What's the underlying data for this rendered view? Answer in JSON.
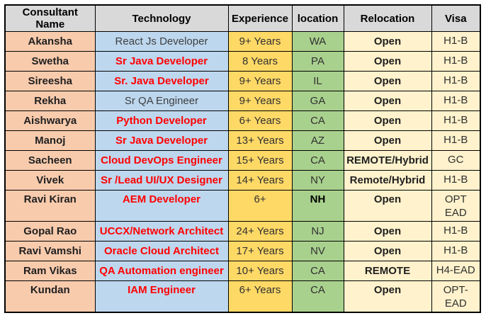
{
  "colors": {
    "header_bg": "#d9d9d9",
    "name_bg": "#f8cbad",
    "tech_bg": "#bdd7ee",
    "exp_bg": "#ffd966",
    "loc_bg": "#a9d18e",
    "reloc_bg": "#fff2cc",
    "visa_bg": "#fff2cc",
    "tech_red": "#ff0000"
  },
  "columns": [
    {
      "label": "Consultant Name"
    },
    {
      "label": "Technology"
    },
    {
      "label": "Experience"
    },
    {
      "label": "location"
    },
    {
      "label": "Relocation"
    },
    {
      "label": "Visa"
    }
  ],
  "rows": [
    {
      "name": "Akansha",
      "technology": "React Js Developer",
      "tech_red": false,
      "experience": "9+ Years",
      "location": "WA",
      "location_bold": false,
      "relocation": "Open",
      "visa": "H1-B",
      "tall": false
    },
    {
      "name": "Swetha",
      "technology": "Sr Java Developer",
      "tech_red": true,
      "experience": "8 Years",
      "location": "PA",
      "location_bold": false,
      "relocation": "Open",
      "visa": "H1-B",
      "tall": false
    },
    {
      "name": "Sireesha",
      "technology": "Sr. Java Developer",
      "tech_red": true,
      "experience": "9+ Years",
      "location": "IL",
      "location_bold": false,
      "relocation": "Open",
      "visa": "H1-B",
      "tall": false
    },
    {
      "name": "Rekha",
      "technology": "Sr QA Engineer",
      "tech_red": false,
      "experience": "9+ Years",
      "location": "GA",
      "location_bold": false,
      "relocation": "Open",
      "visa": "H1-B",
      "tall": false
    },
    {
      "name": "Aishwarya",
      "technology": "Python Developer",
      "tech_red": true,
      "experience": "6+ Years",
      "location": "CA",
      "location_bold": false,
      "relocation": "Open",
      "visa": "H1-B",
      "tall": false
    },
    {
      "name": "Manoj",
      "technology": "Sr Java Developer",
      "tech_red": true,
      "experience": "13+ Years",
      "location": "AZ",
      "location_bold": false,
      "relocation": "Open",
      "visa": "H1-B",
      "tall": false
    },
    {
      "name": "Sacheen",
      "technology": "Cloud DevOps Engineer",
      "tech_red": true,
      "experience": "15+ Years",
      "location": "CA",
      "location_bold": false,
      "relocation": "REMOTE/Hybrid",
      "visa": "GC",
      "tall": false
    },
    {
      "name": "Vivek",
      "technology": "Sr /Lead UI/UX Designer",
      "tech_red": true,
      "experience": "14+ Years",
      "location": "NY",
      "location_bold": false,
      "relocation": "Remote/Hybrid",
      "visa": "H1-B",
      "tall": false
    },
    {
      "name": "Ravi Kiran",
      "technology": "AEM Developer",
      "tech_red": true,
      "experience": "6+",
      "location": "NH",
      "location_bold": true,
      "relocation": "Open",
      "visa": "OPT\nEAD",
      "tall": true
    },
    {
      "name": "Gopal Rao",
      "technology": "UCCX/Network Architect",
      "tech_red": true,
      "experience": "24+ Years",
      "location": "NJ",
      "location_bold": false,
      "relocation": "Open",
      "visa": "H1-B",
      "tall": false
    },
    {
      "name": "Ravi Vamshi",
      "technology": "Oracle Cloud Architect",
      "tech_red": true,
      "experience": "17+ Years",
      "location": "NV",
      "location_bold": false,
      "relocation": "Open",
      "visa": "H1-B",
      "tall": false
    },
    {
      "name": "Ram Vikas",
      "technology": "QA Automation engineer",
      "tech_red": true,
      "experience": "10+ Years",
      "location": "CA",
      "location_bold": false,
      "relocation": "REMOTE",
      "visa": "H4-EAD",
      "tall": false
    },
    {
      "name": "Kundan",
      "technology": "IAM Engineer",
      "tech_red": true,
      "experience": "6+ Years",
      "location": "CA",
      "location_bold": false,
      "relocation": "Open",
      "visa": "OPT-\nEAD",
      "tall": true
    }
  ]
}
